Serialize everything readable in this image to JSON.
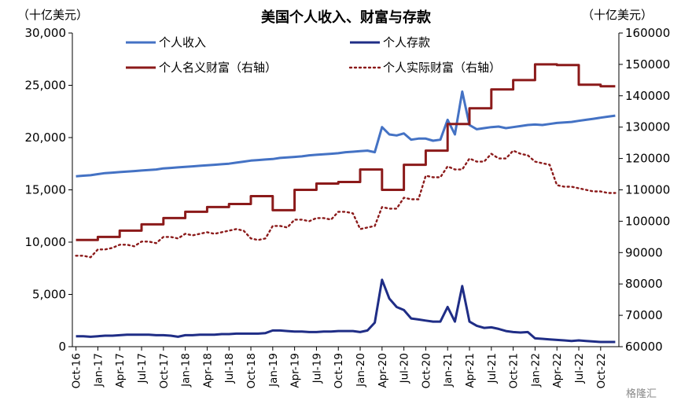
{
  "chart_data": {
    "type": "line",
    "title": "美国个人收入、财富与存款",
    "left_axis_unit": "（十亿美元）",
    "right_axis_unit": "（十亿美元）",
    "y_left_ticks": [
      "0",
      "5,000",
      "10,000",
      "15,000",
      "20,000",
      "25,000",
      "30,000"
    ],
    "y_right_ticks": [
      "60000",
      "70000",
      "80000",
      "90000",
      "100000",
      "110000",
      "120000",
      "130000",
      "140000",
      "150000",
      "160000"
    ],
    "ylim_left": [
      0,
      30000
    ],
    "ylim_right": [
      60000,
      160000
    ],
    "x_tick_labels": [
      "Oct-16",
      "Jan-17",
      "Apr-17",
      "Jul-17",
      "Oct-17",
      "Jan-18",
      "Apr-18",
      "Jul-18",
      "Oct-18",
      "Jan-19",
      "Apr-19",
      "Jul-19",
      "Oct-19",
      "Jan-20",
      "Apr-20",
      "Jul-20",
      "Oct-20",
      "Jan-21",
      "Apr-21",
      "Jul-21",
      "Oct-21",
      "Jan-22",
      "Apr-22",
      "Jul-22",
      "Oct-22"
    ],
    "x": [
      "2016-10",
      "2016-11",
      "2016-12",
      "2017-01",
      "2017-02",
      "2017-03",
      "2017-04",
      "2017-05",
      "2017-06",
      "2017-07",
      "2017-08",
      "2017-09",
      "2017-10",
      "2017-11",
      "2017-12",
      "2018-01",
      "2018-02",
      "2018-03",
      "2018-04",
      "2018-05",
      "2018-06",
      "2018-07",
      "2018-08",
      "2018-09",
      "2018-10",
      "2018-11",
      "2018-12",
      "2019-01",
      "2019-02",
      "2019-03",
      "2019-04",
      "2019-05",
      "2019-06",
      "2019-07",
      "2019-08",
      "2019-09",
      "2019-10",
      "2019-11",
      "2019-12",
      "2020-01",
      "2020-02",
      "2020-03",
      "2020-04",
      "2020-05",
      "2020-06",
      "2020-07",
      "2020-08",
      "2020-09",
      "2020-10",
      "2020-11",
      "2020-12",
      "2021-01",
      "2021-02",
      "2021-03",
      "2021-04",
      "2021-05",
      "2021-06",
      "2021-07",
      "2021-08",
      "2021-09",
      "2021-10",
      "2021-11",
      "2021-12",
      "2022-01",
      "2022-02",
      "2022-03",
      "2022-04",
      "2022-05",
      "2022-06",
      "2022-07",
      "2022-08",
      "2022-09",
      "2022-10",
      "2022-11",
      "2022-12"
    ],
    "series": [
      {
        "name": "个人收入",
        "axis": "left",
        "color": "#4472C4",
        "style": "solid",
        "values": [
          16300,
          16350,
          16400,
          16500,
          16600,
          16650,
          16700,
          16750,
          16800,
          16850,
          16900,
          16950,
          17050,
          17100,
          17150,
          17200,
          17250,
          17300,
          17350,
          17400,
          17450,
          17500,
          17600,
          17700,
          17800,
          17850,
          17900,
          17950,
          18050,
          18100,
          18150,
          18200,
          18300,
          18350,
          18400,
          18450,
          18500,
          18600,
          18650,
          18700,
          18750,
          18600,
          21000,
          20300,
          20200,
          20400,
          19800,
          19900,
          19900,
          19700,
          19800,
          21700,
          20300,
          24400,
          21200,
          20800,
          20900,
          21000,
          21050,
          20900,
          21000,
          21100,
          21200,
          21250,
          21200,
          21300,
          21400,
          21450,
          21500,
          21600,
          21700,
          21800,
          21900,
          22000,
          22100
        ]
      },
      {
        "name": "个人存款",
        "axis": "left",
        "color": "#1F2D86",
        "style": "solid",
        "values": [
          1000,
          1000,
          950,
          1000,
          1050,
          1050,
          1100,
          1150,
          1150,
          1150,
          1150,
          1100,
          1100,
          1050,
          950,
          1100,
          1100,
          1150,
          1150,
          1150,
          1200,
          1200,
          1250,
          1250,
          1250,
          1250,
          1300,
          1550,
          1550,
          1500,
          1450,
          1450,
          1400,
          1400,
          1450,
          1450,
          1500,
          1500,
          1500,
          1400,
          1550,
          2300,
          6400,
          4600,
          3800,
          3500,
          2700,
          2600,
          2500,
          2400,
          2400,
          3800,
          2400,
          5800,
          2400,
          2000,
          1800,
          1850,
          1700,
          1500,
          1400,
          1350,
          1400,
          800,
          750,
          700,
          650,
          600,
          550,
          600,
          550,
          500,
          450,
          450,
          450
        ]
      },
      {
        "name": "个人名义财富（右轴）",
        "axis": "right",
        "color": "#8B1A1A",
        "style": "step",
        "values": [
          94000,
          94000,
          94000,
          95000,
          95000,
          95000,
          97000,
          97000,
          97000,
          99000,
          99000,
          99000,
          101000,
          101000,
          101000,
          103000,
          103000,
          103000,
          104500,
          104500,
          104500,
          105500,
          105500,
          105500,
          108000,
          108000,
          108000,
          103500,
          103500,
          103500,
          110000,
          110000,
          110000,
          112000,
          112000,
          112000,
          112500,
          112500,
          112500,
          116500,
          116500,
          116500,
          110000,
          110000,
          110000,
          118000,
          118000,
          118000,
          122500,
          122500,
          122500,
          131000,
          131000,
          131000,
          136000,
          136000,
          136000,
          142000,
          142000,
          142000,
          145000,
          145000,
          145000,
          150000,
          150000,
          150000,
          149800,
          149800,
          149800,
          143500,
          143500,
          143500,
          143000,
          143000,
          143000
        ]
      },
      {
        "name": "个人实际财富（右轴）",
        "axis": "right",
        "color": "#8B1A1A",
        "style": "dotted",
        "values": [
          89000,
          89000,
          88500,
          91000,
          91000,
          91500,
          92500,
          92500,
          92000,
          93500,
          93500,
          93000,
          95000,
          95000,
          94500,
          96000,
          95500,
          96000,
          96500,
          96000,
          96500,
          97000,
          97500,
          97000,
          94500,
          94000,
          94500,
          98500,
          98500,
          98000,
          100500,
          100500,
          100000,
          101000,
          101000,
          100500,
          103000,
          103000,
          102500,
          97500,
          98000,
          98500,
          104500,
          104000,
          104000,
          107500,
          107000,
          107000,
          114500,
          114000,
          114000,
          117500,
          116500,
          116500,
          120000,
          119000,
          119000,
          121500,
          120000,
          120000,
          122500,
          121500,
          121000,
          119000,
          118500,
          118000,
          111500,
          111000,
          111000,
          110500,
          110000,
          109500,
          109500,
          109000,
          109000
        ]
      }
    ]
  },
  "watermark": "格隆汇"
}
